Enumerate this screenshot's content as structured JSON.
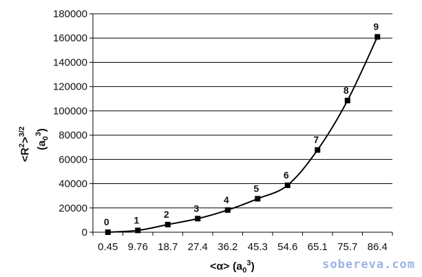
{
  "chart_data": {
    "type": "line",
    "categories": [
      "0.45",
      "9.76",
      "18.7",
      "27.4",
      "36.2",
      "45.3",
      "54.6",
      "65.1",
      "75.7",
      "86.4"
    ],
    "point_labels": [
      "0",
      "1",
      "2",
      "3",
      "4",
      "5",
      "6",
      "7",
      "8",
      "9"
    ],
    "values": [
      0,
      1500,
      6300,
      11200,
      18300,
      27600,
      38700,
      67800,
      108500,
      161000
    ],
    "ylim": [
      0,
      180000
    ],
    "yticks": [
      0,
      20000,
      40000,
      60000,
      80000,
      100000,
      120000,
      140000,
      160000,
      180000
    ],
    "ylabel_line1": "<R",
    "ylabel_sup1": "2",
    "ylabel_line1_end": ">",
    "ylabel_sup2": "3/2",
    "ylabel_line2": "(a",
    "ylabel_sub": "0",
    "ylabel_sup3": "3",
    "ylabel_line2_end": ")",
    "xlabel_start": "<α> (a",
    "xlabel_sub": "0",
    "xlabel_sup": "3",
    "xlabel_end": ")",
    "grid": "horizontal",
    "marker": "square",
    "line_color": "#000000"
  },
  "watermark": "sobereva.com"
}
